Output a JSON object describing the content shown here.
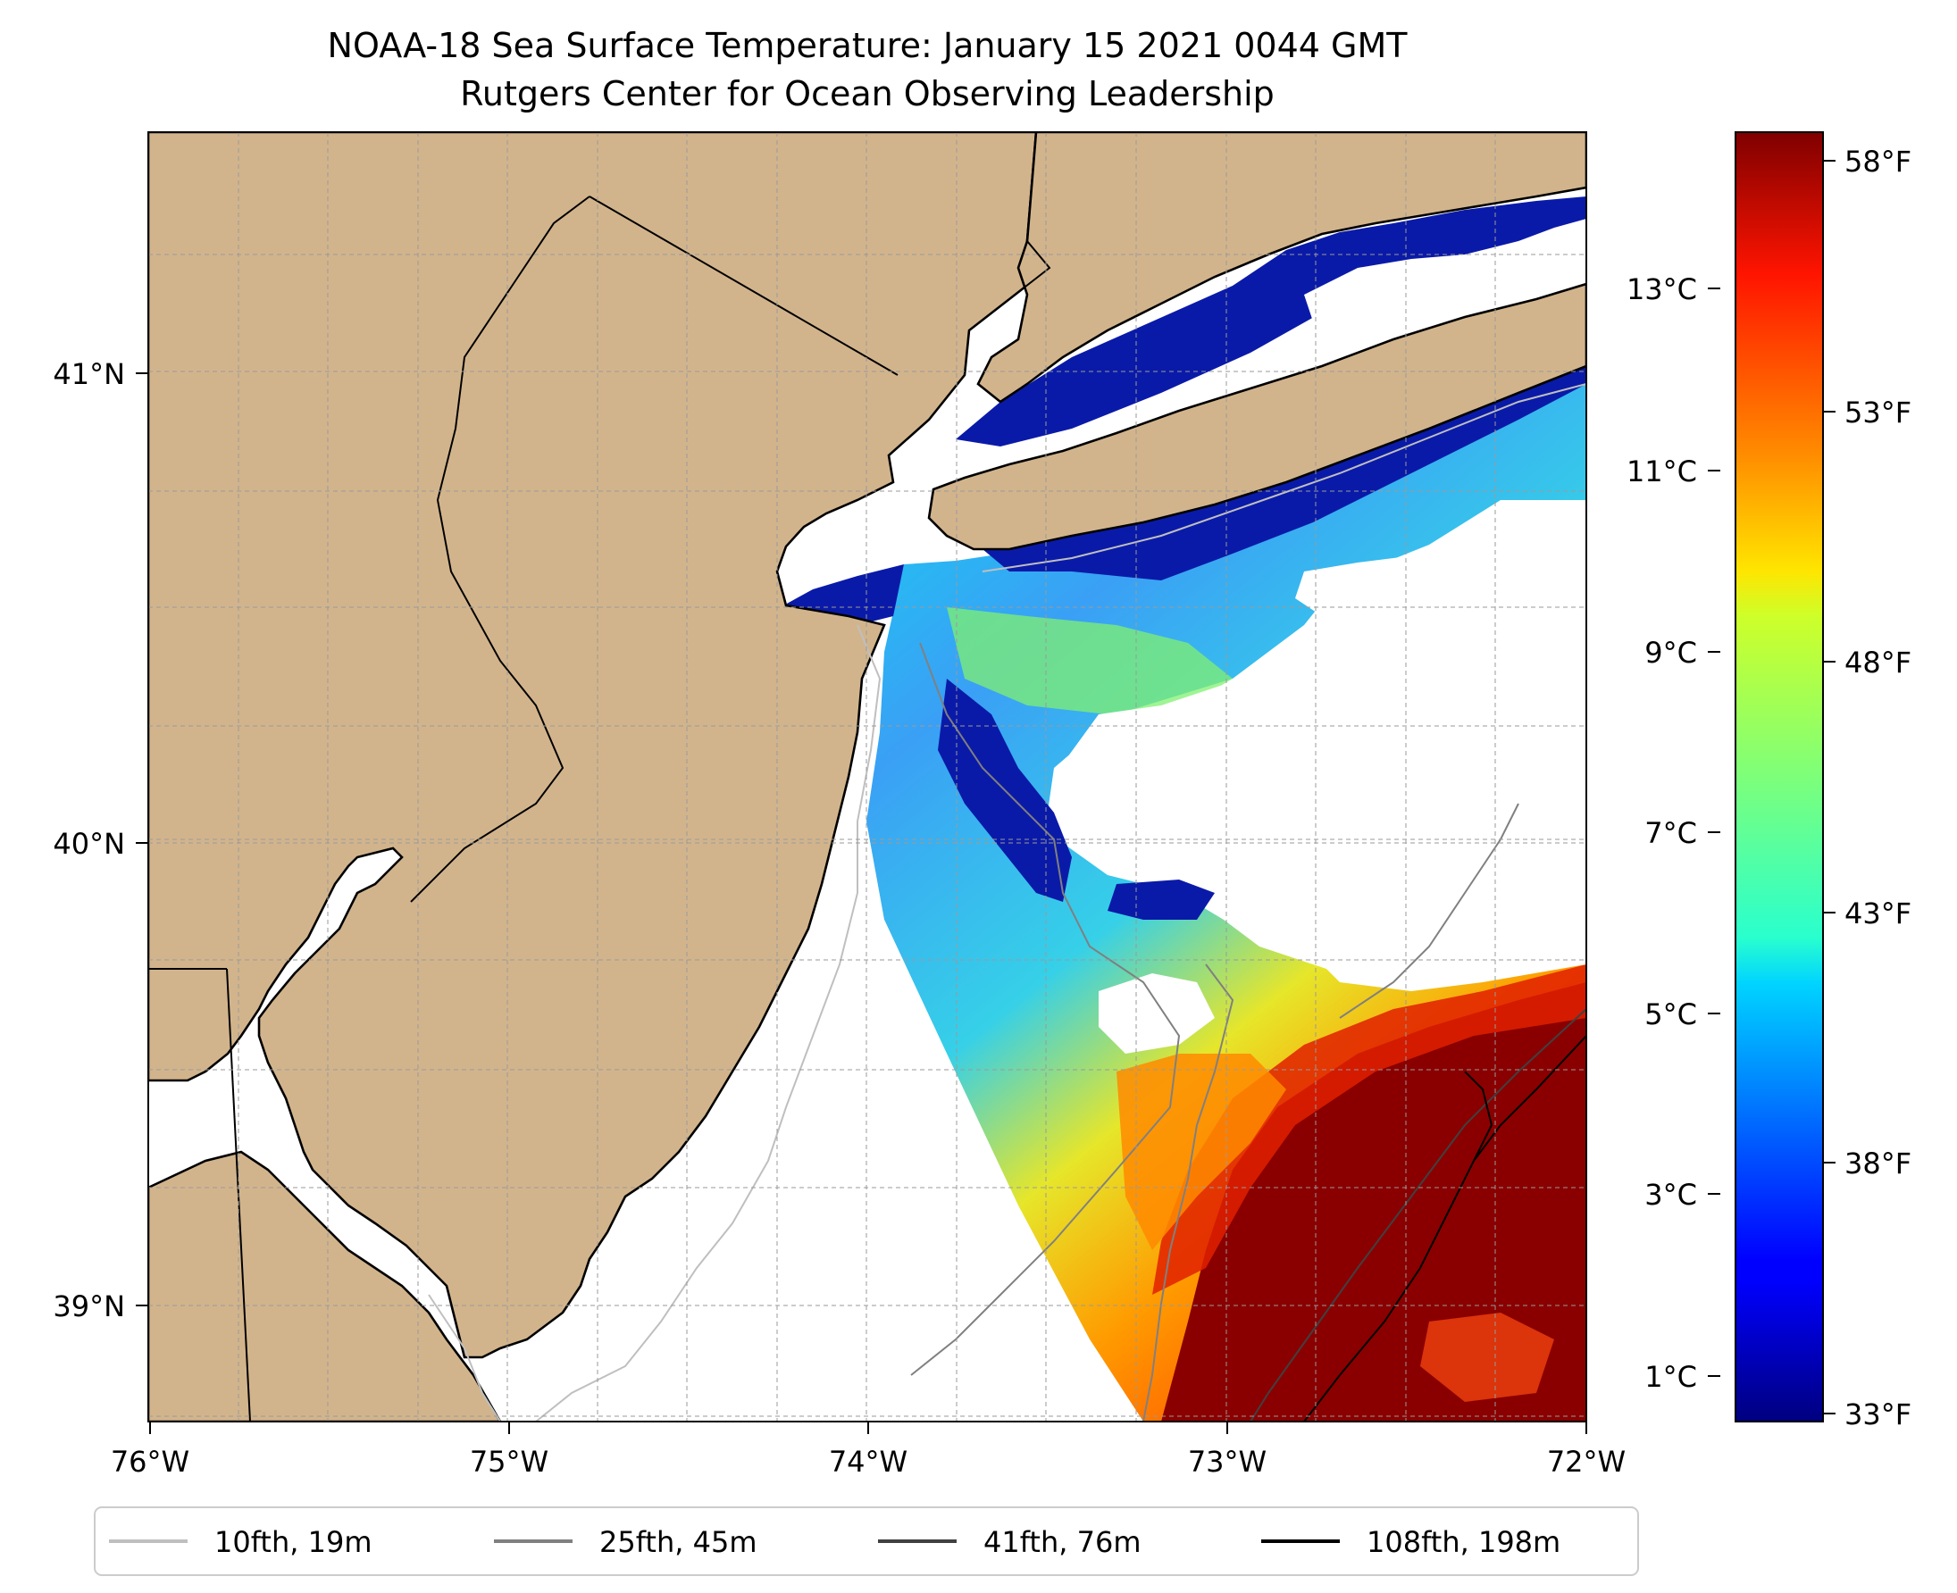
{
  "title": {
    "line1": "NOAA-18 Sea Surface Temperature: January 15 2021 0044 GMT",
    "line2": "Rutgers Center for Ocean Observing Leadership"
  },
  "map": {
    "lon_labels": [
      "76°W",
      "75°W",
      "74°W",
      "73°W",
      "72°W"
    ],
    "lat_labels": [
      "41°N",
      "40°N",
      "39°N"
    ],
    "land_color": "#d2b48c",
    "gridlines": true
  },
  "colorbar": {
    "colormap": "jet",
    "fahrenheit_ticks": [
      "58°F",
      "53°F",
      "48°F",
      "43°F",
      "38°F",
      "33°F"
    ],
    "celsius_ticks": [
      "13°C",
      "11°C",
      "9°C",
      "7°C",
      "5°C",
      "3°C",
      "1°C"
    ]
  },
  "legend": {
    "items": [
      {
        "label": "10fth, 19m",
        "color": "#bfbfbf"
      },
      {
        "label": "25fth, 45m",
        "color": "#808080"
      },
      {
        "label": "41fth, 76m",
        "color": "#404040"
      },
      {
        "label": "108fth, 198m",
        "color": "#000000"
      }
    ]
  }
}
